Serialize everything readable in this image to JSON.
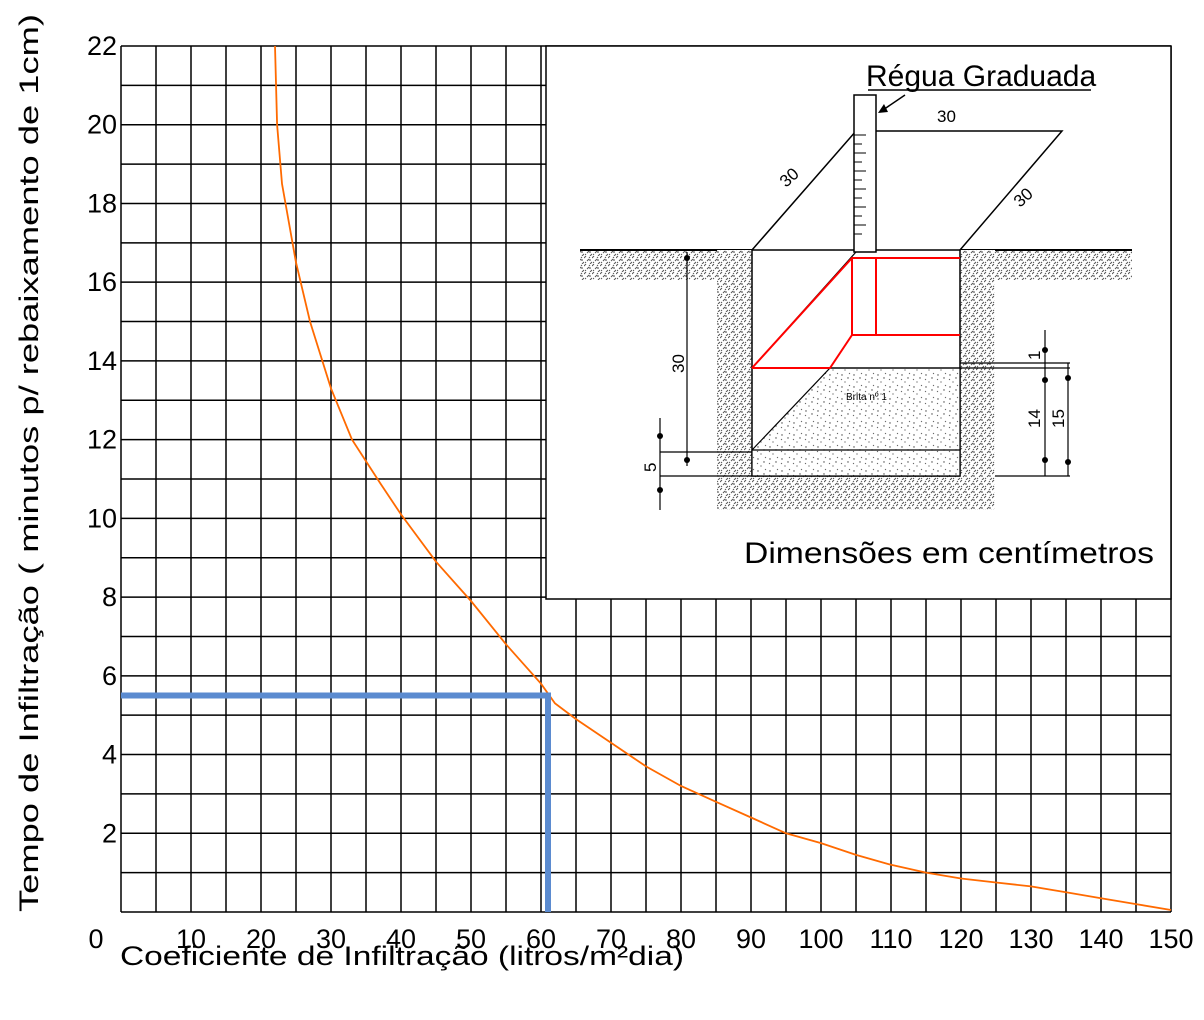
{
  "chart_data": {
    "type": "line",
    "xlabel": "Coeficiente de Infiltração (litros/m²dia)",
    "ylabel": "Tempo de Infiltração ( minutos p/ rebaixamento de 1cm)",
    "xlim": [
      0,
      150
    ],
    "ylim": [
      0,
      22
    ],
    "x_ticks": [
      0,
      10,
      20,
      30,
      40,
      50,
      60,
      70,
      80,
      90,
      100,
      110,
      120,
      130,
      140,
      150
    ],
    "y_ticks": [
      2,
      4,
      6,
      8,
      10,
      12,
      14,
      16,
      18,
      20,
      22
    ],
    "grid": true,
    "curve": {
      "color": "#ff6a00",
      "x": [
        22.0,
        22.3,
        23.0,
        24.0,
        25.0,
        27.0,
        30.0,
        33.0,
        37.0,
        40.0,
        45.0,
        50.0,
        55.0,
        60.0,
        62.0,
        65.0,
        70.0,
        75.0,
        80.0,
        85.0,
        90.0,
        95.0,
        100.0,
        105.0,
        110.0,
        115.0,
        120.0,
        125.0,
        130.0,
        135.0,
        140.0,
        145.0,
        150.0
      ],
      "y": [
        22.0,
        20.0,
        18.5,
        17.5,
        16.5,
        15.0,
        13.3,
        12.0,
        10.9,
        10.1,
        8.9,
        7.9,
        6.8,
        5.8,
        5.3,
        4.9,
        4.3,
        3.7,
        3.2,
        2.8,
        2.4,
        2.0,
        1.75,
        1.45,
        1.2,
        1.0,
        0.85,
        0.75,
        0.65,
        0.5,
        0.35,
        0.2,
        0.05
      ]
    },
    "reading": {
      "color": "#5b8bd0",
      "x": 61,
      "y": 5.5
    }
  },
  "inset": {
    "title": "Régua Graduada",
    "caption": "Dimensões em centímetros",
    "fill_label": "Brita nº 1",
    "dims": {
      "top": "30",
      "left": "30",
      "right": "30",
      "depth": "30",
      "bottom": "5",
      "layer_top": "1",
      "layer_a": "14",
      "layer_b": "15"
    }
  }
}
